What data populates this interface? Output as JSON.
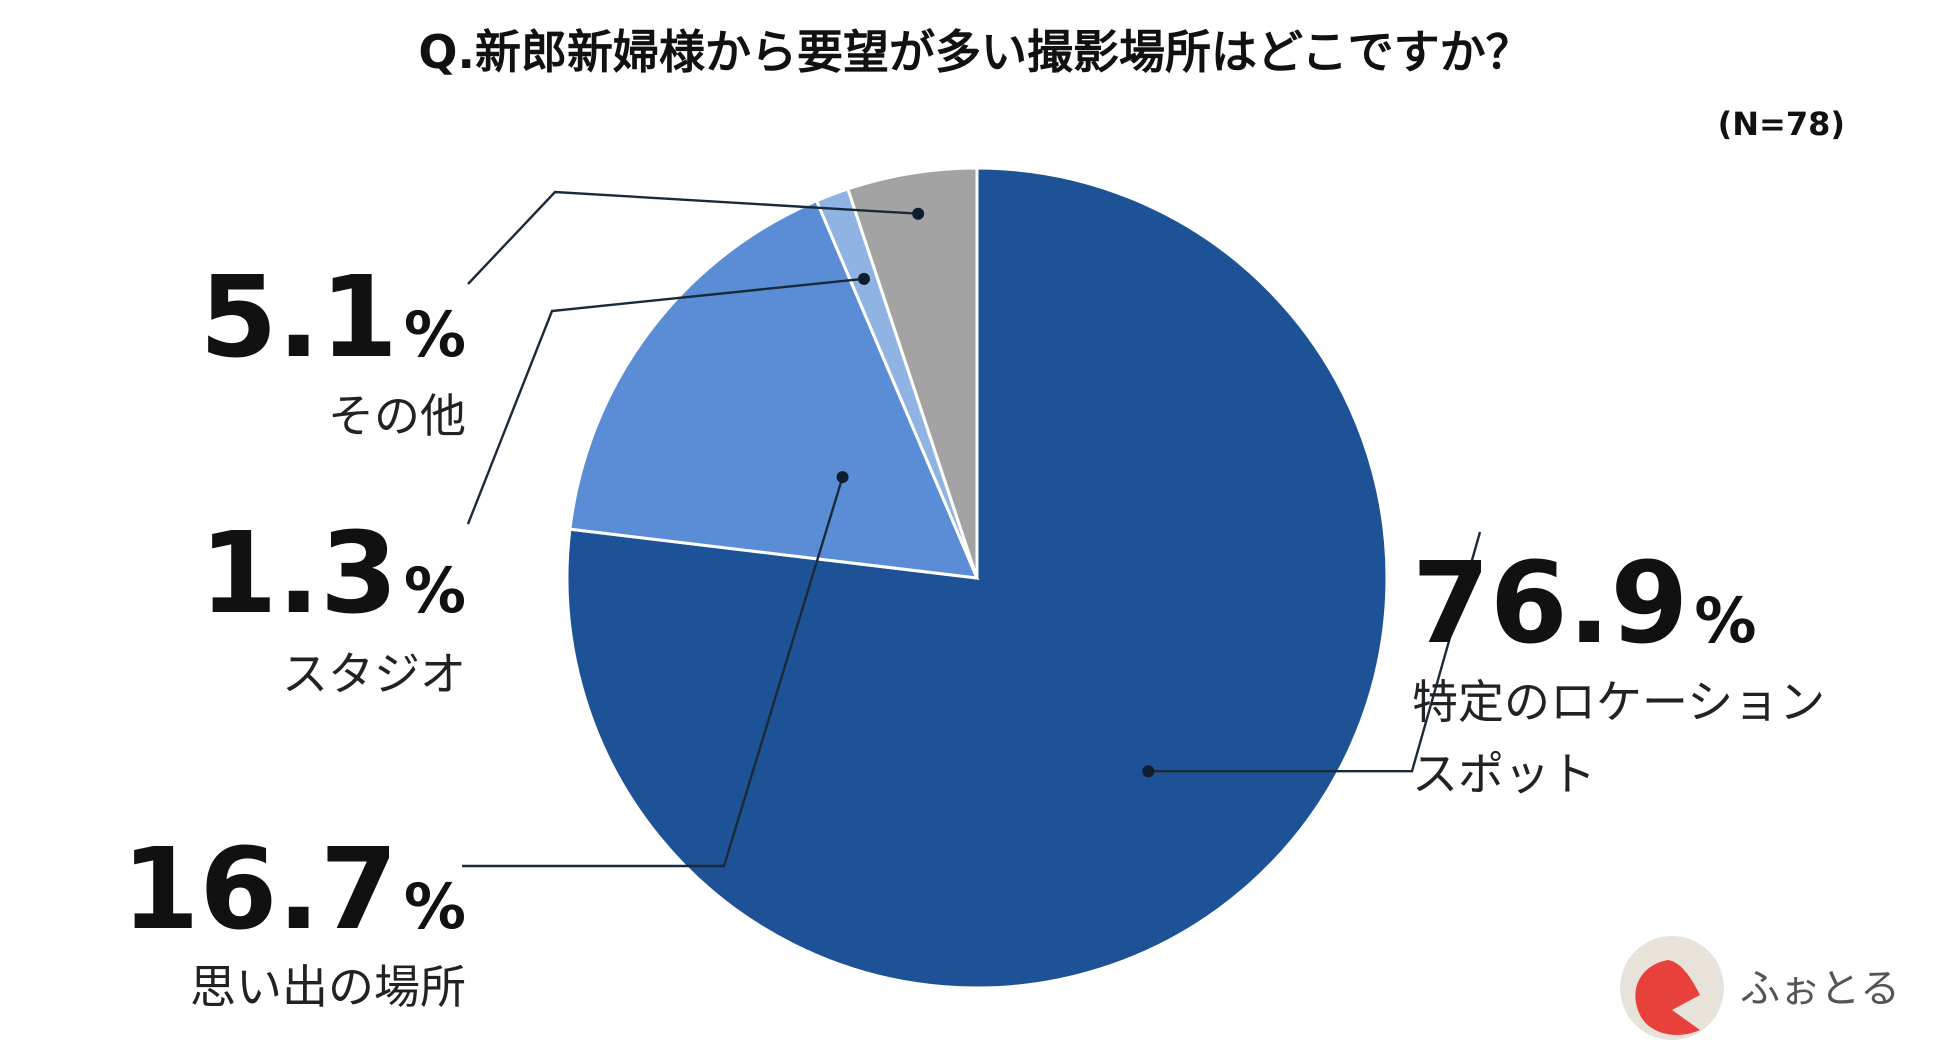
{
  "chart_data": {
    "type": "pie",
    "title": "Q.新郎新婦様から要望が多い撮影場所はどこですか？",
    "note": "(N=78)",
    "categories": [
      "特定のロケーションスポット",
      "思い出の場所",
      "スタジオ",
      "その他"
    ],
    "values": [
      76.9,
      16.7,
      1.3,
      5.1
    ],
    "unit": "%",
    "colors": [
      "#1e5296",
      "#5b8dd6",
      "#8fb4e3",
      "#a3a3a3"
    ],
    "labels": [
      {
        "value": "76.9",
        "unit": "%",
        "lines": [
          "特定のロケーション",
          "スポット"
        ]
      },
      {
        "value": "16.7",
        "unit": "%",
        "lines": [
          "思い出の場所"
        ]
      },
      {
        "value": "1.3",
        "unit": "%",
        "lines": [
          "スタジオ"
        ]
      },
      {
        "value": "5.1",
        "unit": "%",
        "lines": [
          "その他"
        ]
      }
    ]
  },
  "brand": {
    "name": "ふぉとる",
    "logo_colors": [
      "#e8e3da",
      "#e8413c"
    ],
    "icon": "logo-icon"
  }
}
